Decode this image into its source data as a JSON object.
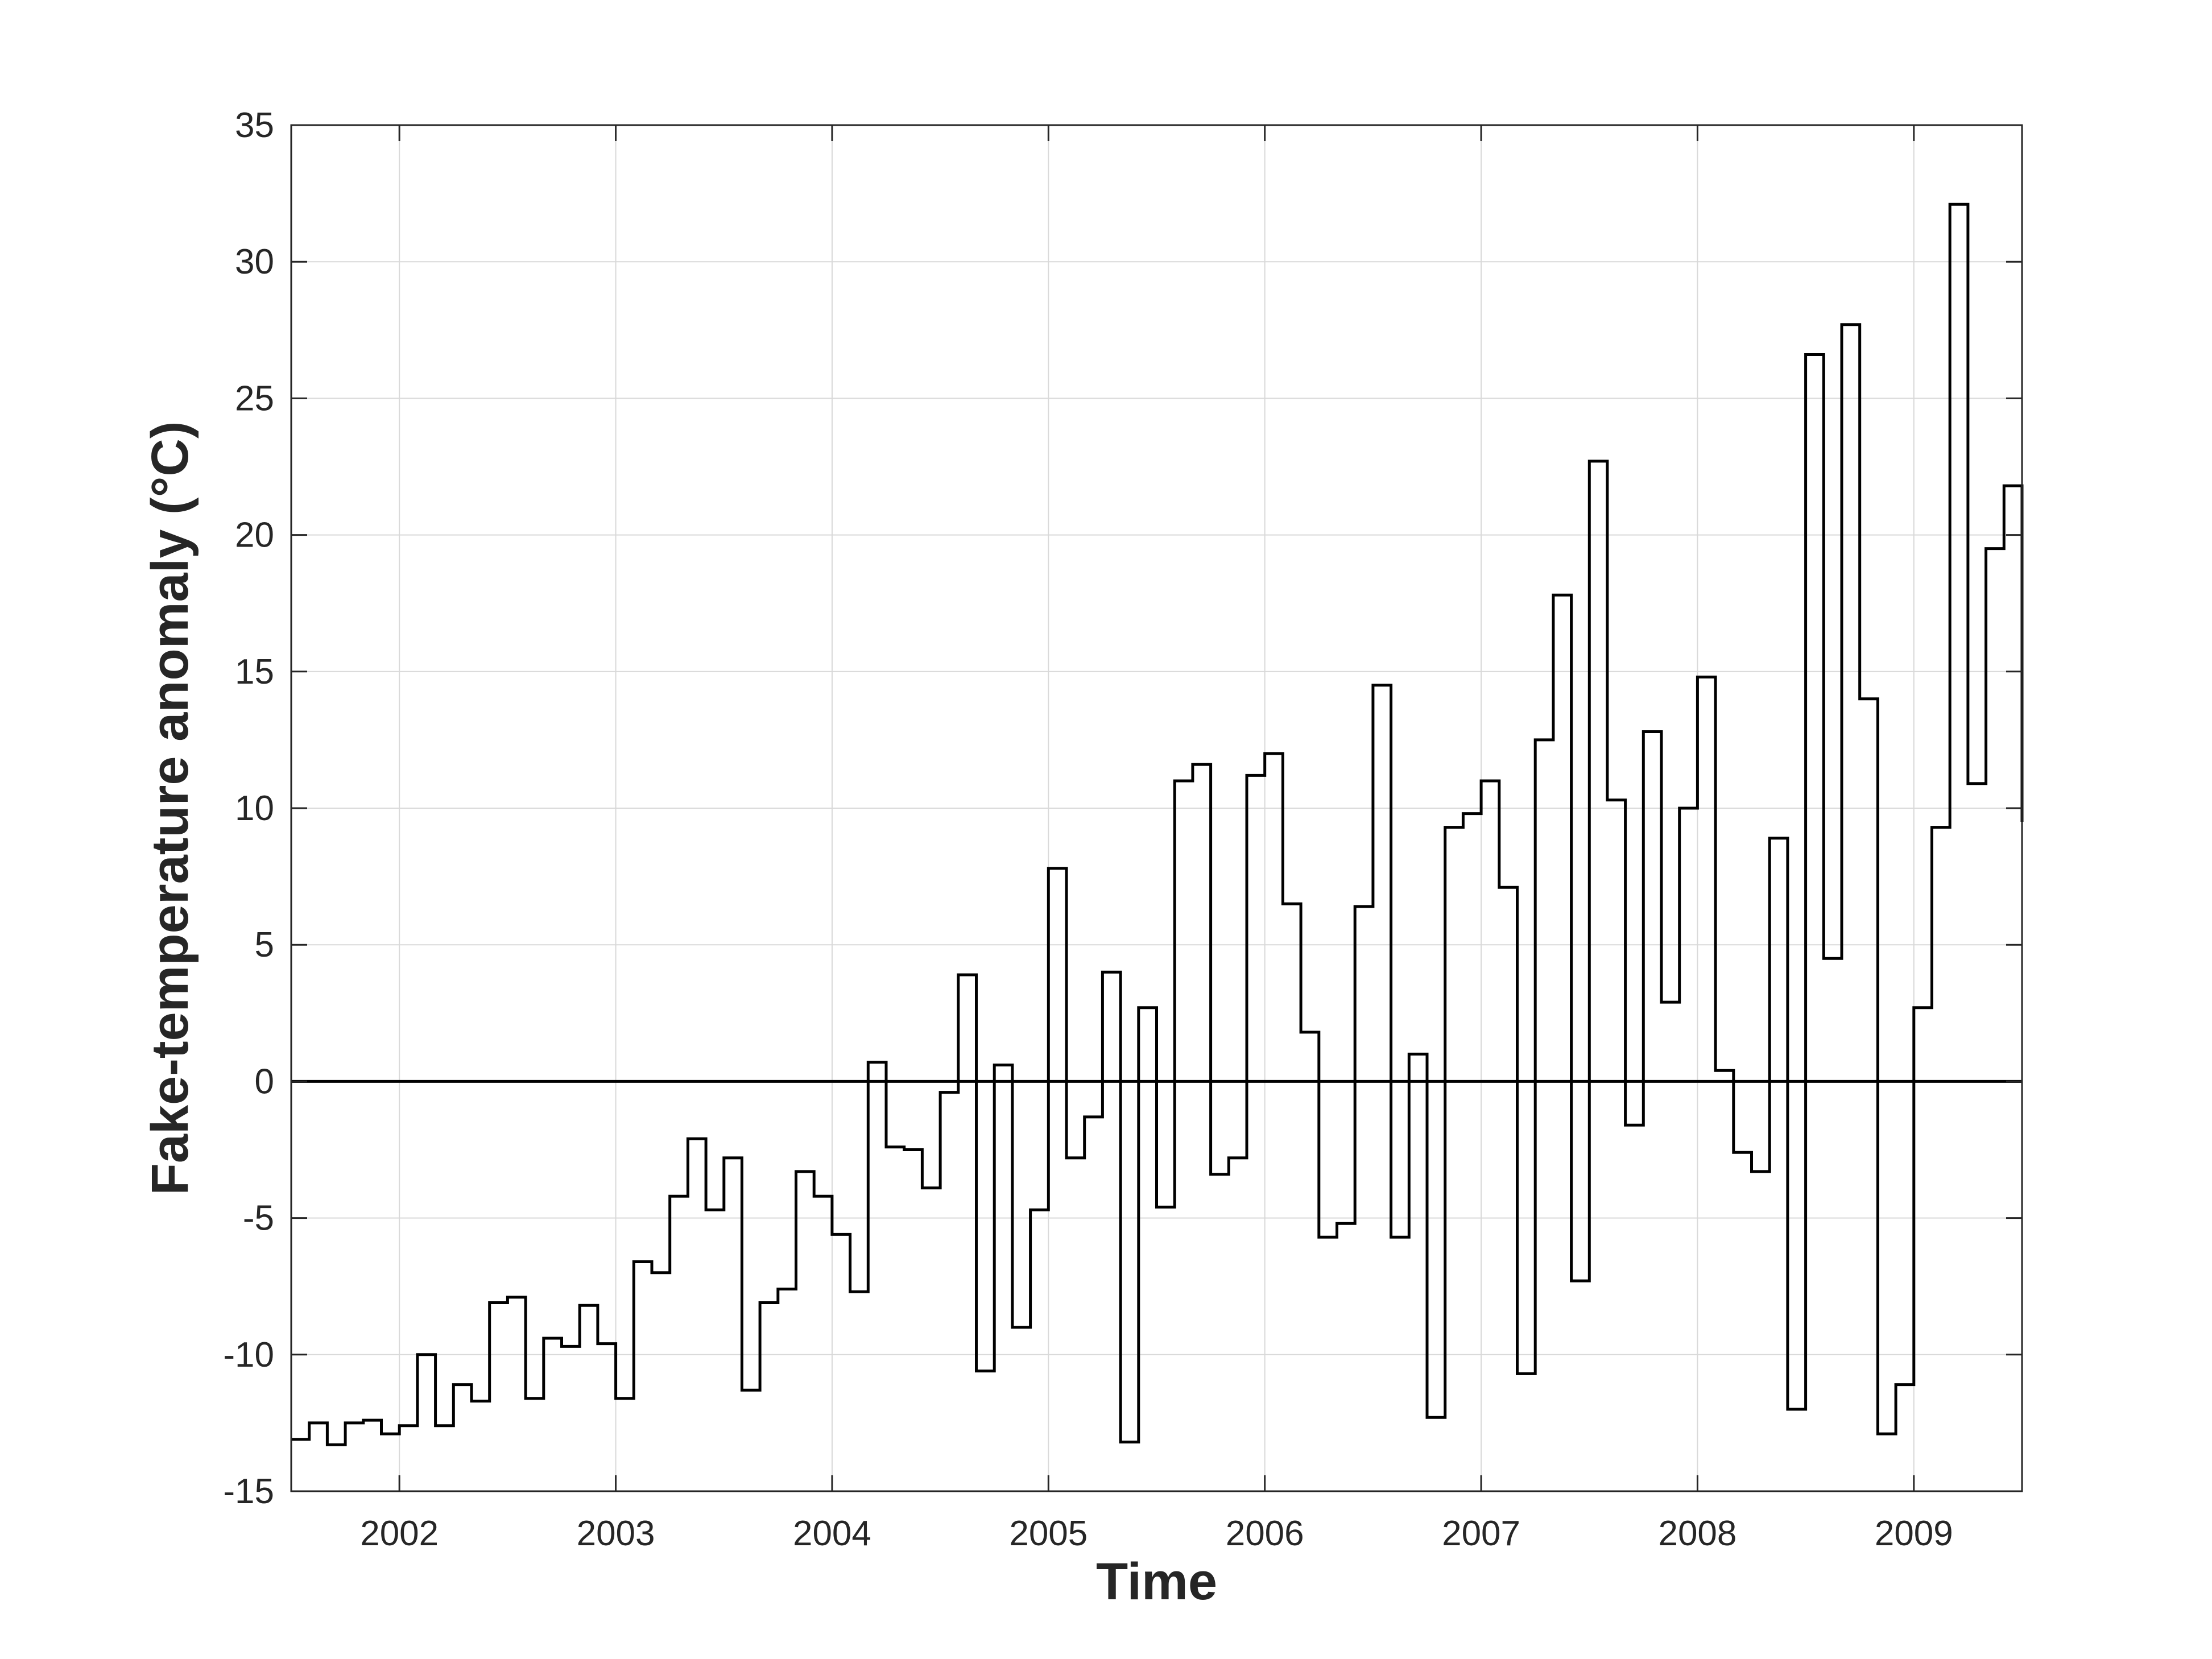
{
  "chart_data": {
    "type": "line",
    "style": "stairs",
    "xlabel": "Time",
    "ylabel": "Fake-temperature anomaly (°C)",
    "xlim": [
      "2001-07-01",
      "2009-07-01"
    ],
    "ylim": [
      -15,
      35
    ],
    "x_ticks": [
      "2002",
      "2003",
      "2004",
      "2005",
      "2006",
      "2007",
      "2008",
      "2009"
    ],
    "y_ticks": [
      "-15",
      "-10",
      "-5",
      "0",
      "5",
      "10",
      "15",
      "20",
      "25",
      "30",
      "35"
    ],
    "grid": true,
    "zero_line": 0,
    "line_color": "#000000",
    "series": [
      {
        "x": [
          "2001-07",
          "2001-08",
          "2001-09",
          "2001-10",
          "2001-11",
          "2001-12",
          "2002-01",
          "2002-02",
          "2002-03",
          "2002-04",
          "2002-05",
          "2002-06",
          "2002-07",
          "2002-08",
          "2002-09",
          "2002-10",
          "2002-11",
          "2002-12",
          "2003-01",
          "2003-02",
          "2003-03",
          "2003-04",
          "2003-05",
          "2003-06",
          "2003-07",
          "2003-08",
          "2003-09",
          "2003-10",
          "2003-11",
          "2003-12",
          "2004-01",
          "2004-02",
          "2004-03",
          "2004-04",
          "2004-05",
          "2004-06",
          "2004-07",
          "2004-08",
          "2004-09",
          "2004-10",
          "2004-11",
          "2004-12",
          "2005-01",
          "2005-02",
          "2005-03",
          "2005-04",
          "2005-05",
          "2005-06",
          "2005-07",
          "2005-08",
          "2005-09",
          "2005-10",
          "2005-11",
          "2005-12",
          "2006-01",
          "2006-02",
          "2006-03",
          "2006-04",
          "2006-05",
          "2006-06",
          "2006-07",
          "2006-08",
          "2006-09",
          "2006-10",
          "2006-11",
          "2006-12",
          "2007-01",
          "2007-02",
          "2007-03",
          "2007-04",
          "2007-05",
          "2007-06",
          "2007-07",
          "2007-08",
          "2007-09",
          "2007-10",
          "2007-11",
          "2007-12",
          "2008-01",
          "2008-02",
          "2008-03",
          "2008-04",
          "2008-05",
          "2008-06",
          "2008-07",
          "2008-08",
          "2008-09",
          "2008-10",
          "2008-11",
          "2008-12",
          "2009-01",
          "2009-02",
          "2009-03",
          "2009-04",
          "2009-05",
          "2009-06",
          "2009-07"
        ],
        "y": [
          -13.1,
          -12.5,
          -13.3,
          -12.5,
          -12.4,
          -12.9,
          -12.6,
          -10.0,
          -12.6,
          -11.1,
          -11.7,
          -8.1,
          -7.9,
          -11.6,
          -9.4,
          -9.7,
          -8.2,
          -9.6,
          -11.6,
          -6.6,
          -7.0,
          -4.2,
          -2.1,
          -4.7,
          -2.8,
          -11.3,
          -8.1,
          -7.6,
          -3.3,
          -4.2,
          -5.6,
          -7.7,
          0.7,
          -2.4,
          -2.5,
          -3.9,
          -0.4,
          3.9,
          -10.6,
          0.6,
          -9.0,
          -4.7,
          7.8,
          -2.8,
          -1.3,
          4.0,
          -13.2,
          2.7,
          -4.6,
          11.0,
          11.6,
          -3.4,
          -2.8,
          11.2,
          12.0,
          6.5,
          1.8,
          -5.7,
          -5.2,
          6.4,
          14.5,
          -5.7,
          1.0,
          -12.3,
          9.3,
          9.8,
          11.0,
          7.1,
          -10.7,
          12.5,
          17.8,
          -7.3,
          22.7,
          10.3,
          -1.6,
          12.8,
          2.9,
          10.0,
          14.8,
          0.4,
          -2.6,
          -3.3,
          8.9,
          -12.0,
          26.6,
          4.5,
          27.7,
          14.0,
          -12.9,
          -11.1,
          2.7,
          9.3,
          32.1,
          10.9,
          19.5,
          21.8,
          9.5
        ]
      }
    ]
  }
}
